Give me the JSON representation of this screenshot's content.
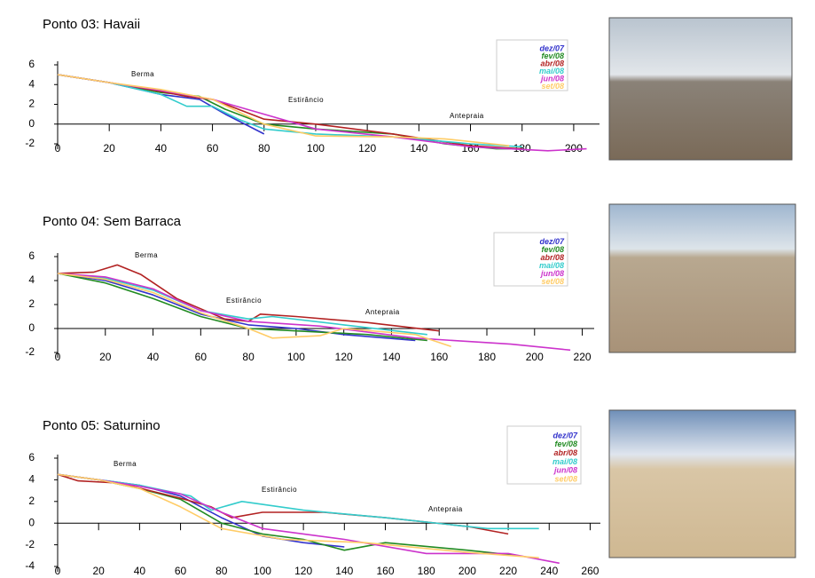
{
  "chart_data": [
    {
      "type": "line",
      "title": "Ponto 03: Havaii",
      "annotations": [
        "Berma",
        "Estirâncio",
        "Antepraia"
      ],
      "xlim": [
        0,
        210
      ],
      "xticks": [
        0,
        20,
        40,
        60,
        80,
        100,
        120,
        140,
        160,
        180,
        200
      ],
      "ylim": [
        -2,
        6
      ],
      "yticks": [
        -2,
        0,
        2,
        4,
        6
      ],
      "series": [
        {
          "name": "dez/07",
          "color": "#3333cc",
          "x": [
            0,
            20,
            40,
            55,
            65,
            80
          ],
          "values": [
            5,
            4.2,
            3,
            2.5,
            1,
            -1
          ]
        },
        {
          "name": "fev/08",
          "color": "#228b22",
          "x": [
            0,
            20,
            40,
            55,
            65,
            80,
            100,
            130,
            150,
            170,
            180
          ],
          "values": [
            5,
            4.2,
            3.2,
            2.8,
            1.5,
            0,
            -0.5,
            -1,
            -2,
            -2.5,
            -2.5
          ]
        },
        {
          "name": "abr/08",
          "color": "#b22222",
          "x": [
            0,
            20,
            40,
            50,
            60,
            80,
            100,
            130,
            160,
            180
          ],
          "values": [
            5,
            4.2,
            3.3,
            2.8,
            2.5,
            0.5,
            0,
            -1,
            -2.2,
            -2.5
          ]
        },
        {
          "name": "mai/08",
          "color": "#33cccc",
          "x": [
            0,
            20,
            40,
            50,
            60,
            70,
            80,
            100,
            130,
            160,
            180
          ],
          "values": [
            5,
            4.2,
            3,
            1.8,
            1.8,
            0.5,
            -0.5,
            -1,
            -1.3,
            -2,
            -2.3
          ]
        },
        {
          "name": "jun/08",
          "color": "#cc33cc",
          "x": [
            0,
            20,
            40,
            60,
            80,
            100,
            130,
            160,
            190,
            205
          ],
          "values": [
            5,
            4.2,
            3.4,
            2.5,
            1,
            -0.5,
            -1.3,
            -2.3,
            -2.7,
            -2.5
          ]
        },
        {
          "name": "set/08",
          "color": "#ffcc66",
          "x": [
            0,
            20,
            40,
            60,
            80,
            100,
            130,
            150,
            175
          ],
          "values": [
            5,
            4.2,
            3.5,
            2.5,
            0,
            -1.2,
            -1.3,
            -1.5,
            -2.2
          ]
        }
      ]
    },
    {
      "type": "line",
      "title": "Ponto 04: Sem Barraca",
      "annotations": [
        "Berma",
        "Estirâncio",
        "Antepraia"
      ],
      "xlim": [
        0,
        225
      ],
      "xticks": [
        0,
        20,
        40,
        60,
        80,
        100,
        120,
        140,
        160,
        180,
        200,
        220
      ],
      "ylim": [
        -2,
        6
      ],
      "yticks": [
        -2,
        0,
        2,
        4,
        6
      ],
      "series": [
        {
          "name": "dez/07",
          "color": "#3333cc",
          "x": [
            0,
            20,
            40,
            60,
            80,
            100,
            120,
            150
          ],
          "values": [
            4.6,
            4,
            2.8,
            1.2,
            0.3,
            0,
            -0.5,
            -1
          ]
        },
        {
          "name": "fev/08",
          "color": "#228b22",
          "x": [
            0,
            20,
            40,
            60,
            80,
            100,
            130,
            155
          ],
          "values": [
            4.6,
            3.8,
            2.5,
            1,
            0,
            -0.2,
            -0.5,
            -1
          ]
        },
        {
          "name": "abr/08",
          "color": "#b22222",
          "x": [
            0,
            15,
            25,
            35,
            50,
            70,
            80,
            85,
            100,
            130,
            160
          ],
          "values": [
            4.6,
            4.7,
            5.3,
            4.5,
            2.5,
            0.8,
            0.6,
            1.2,
            1,
            0.5,
            -0.2
          ]
        },
        {
          "name": "mai/08",
          "color": "#33cccc",
          "x": [
            0,
            20,
            40,
            60,
            80,
            90,
            120,
            155
          ],
          "values": [
            4.6,
            4.2,
            3.2,
            1.5,
            0.8,
            1,
            0.3,
            -0.5
          ]
        },
        {
          "name": "jun/08",
          "color": "#cc33cc",
          "x": [
            0,
            20,
            40,
            60,
            80,
            110,
            150,
            190,
            215
          ],
          "values": [
            4.6,
            4.3,
            3.3,
            1.5,
            0.6,
            0.2,
            -0.8,
            -1.3,
            -1.8
          ]
        },
        {
          "name": "set/08",
          "color": "#ffcc66",
          "x": [
            0,
            20,
            40,
            60,
            80,
            90,
            110,
            120,
            150,
            165
          ],
          "values": [
            4.6,
            4.1,
            3,
            1.3,
            0,
            -0.8,
            -0.6,
            0,
            -0.5,
            -1.5
          ]
        }
      ]
    },
    {
      "type": "line",
      "title": "Ponto 05: Saturnino",
      "annotations": [
        "Berma",
        "Estirâncio",
        "Antepraia"
      ],
      "xlim": [
        0,
        265
      ],
      "xticks": [
        0,
        20,
        40,
        60,
        80,
        100,
        120,
        140,
        160,
        180,
        200,
        220,
        240,
        260
      ],
      "ylim": [
        -4,
        6
      ],
      "yticks": [
        -4,
        -2,
        0,
        2,
        4,
        6
      ],
      "series": [
        {
          "name": "dez/07",
          "color": "#3333cc",
          "x": [
            0,
            20,
            40,
            60,
            70,
            80,
            100,
            120,
            140
          ],
          "values": [
            4.5,
            4,
            3.5,
            2.5,
            1.5,
            0.5,
            -1.2,
            -1.8,
            -2.2
          ]
        },
        {
          "name": "fev/08",
          "color": "#228b22",
          "x": [
            0,
            20,
            40,
            60,
            80,
            100,
            120,
            140,
            160,
            200,
            225
          ],
          "values": [
            4.5,
            4,
            3.2,
            2.2,
            0,
            -1,
            -1.5,
            -2.5,
            -1.8,
            -2.5,
            -3
          ]
        },
        {
          "name": "abr/08",
          "color": "#b22222",
          "x": [
            0,
            10,
            30,
            60,
            75,
            85,
            100,
            130,
            160,
            200,
            220
          ],
          "values": [
            4.5,
            3.9,
            3.7,
            2.3,
            1.5,
            0.5,
            1,
            1,
            0.5,
            -0.3,
            -1
          ]
        },
        {
          "name": "mai/08",
          "color": "#33cccc",
          "x": [
            0,
            20,
            40,
            65,
            75,
            90,
            120,
            160,
            200,
            210,
            235
          ],
          "values": [
            4.5,
            4,
            3.5,
            2.5,
            1.2,
            2,
            1.2,
            0.5,
            -0.3,
            -0.5,
            -0.5
          ]
        },
        {
          "name": "jun/08",
          "color": "#cc33cc",
          "x": [
            0,
            20,
            40,
            60,
            80,
            100,
            140,
            180,
            220,
            245
          ],
          "values": [
            4.5,
            4,
            3.4,
            2.7,
            1,
            -0.5,
            -1.5,
            -2.8,
            -2.8,
            -3.7
          ]
        },
        {
          "name": "set/08",
          "color": "#ffcc66",
          "x": [
            0,
            20,
            40,
            60,
            80,
            110,
            150,
            200,
            235
          ],
          "values": [
            4.5,
            4,
            3.2,
            1.5,
            -0.5,
            -1.5,
            -1.8,
            -2.7,
            -3.2
          ]
        }
      ]
    }
  ]
}
